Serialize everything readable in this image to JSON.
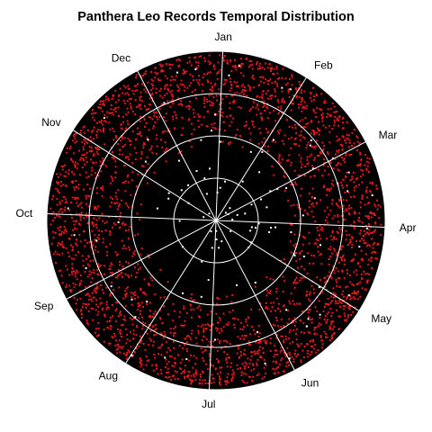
{
  "chart_data": {
    "type": "scatter",
    "subtype": "polar-temporal-distribution",
    "title": "Panthera Leo Records Temporal Distribution",
    "month_labels": [
      "Jan",
      "Feb",
      "Mar",
      "Apr",
      "May",
      "Jun",
      "Jul",
      "Aug",
      "Sep",
      "Oct",
      "Nov",
      "Dec"
    ],
    "orientation": "clockwise, Jan at top",
    "radial_rings": 4,
    "grid": true,
    "colors": {
      "background_disc": "#000000",
      "gridlines": "#ffffff",
      "ring_records": "#e31a1c",
      "center_records": "#ffffff"
    },
    "series": [
      {
        "color_key": "ring_records",
        "points_per_month_approx": [
          240,
          245,
          230,
          250,
          255,
          240,
          235,
          240,
          245,
          230,
          250,
          245
        ],
        "radial_band": "outer two rings, densest near the edge"
      },
      {
        "color_key": "center_records",
        "points_approx": 110,
        "radial_band": "scattered across all rings"
      }
    ]
  }
}
